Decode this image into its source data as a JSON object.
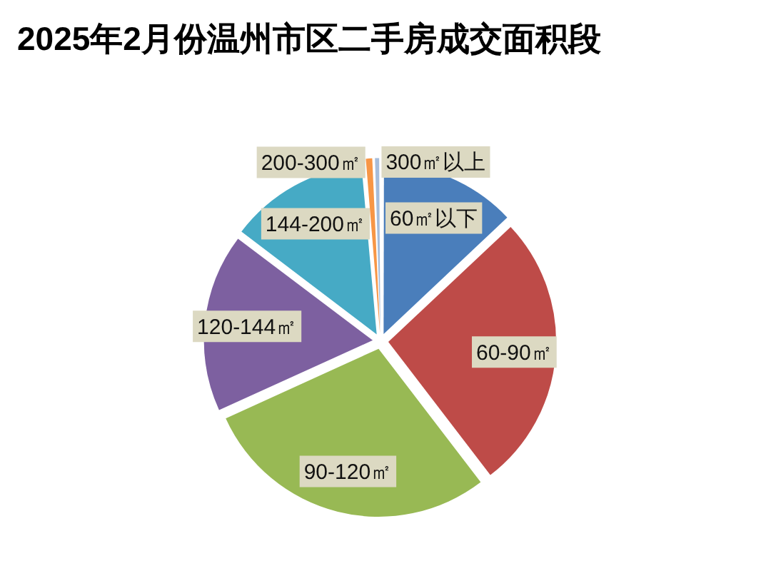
{
  "chart_data": {
    "type": "pie",
    "title": "2025年2月份温州市区二手房成交面积段",
    "categories": [
      "60㎡以下",
      "60-90㎡",
      "90-120㎡",
      "120-144㎡",
      "144-200㎡",
      "200-300㎡",
      "300㎡以上"
    ],
    "values": [
      13,
      26.6,
      28.6,
      17.1,
      13.3,
      0.8,
      0.6
    ],
    "colors": [
      "#4a7ebb",
      "#be4b48",
      "#98b954",
      "#7d60a0",
      "#46aac5",
      "#f79646",
      "#a6bddb"
    ],
    "legend": false
  }
}
